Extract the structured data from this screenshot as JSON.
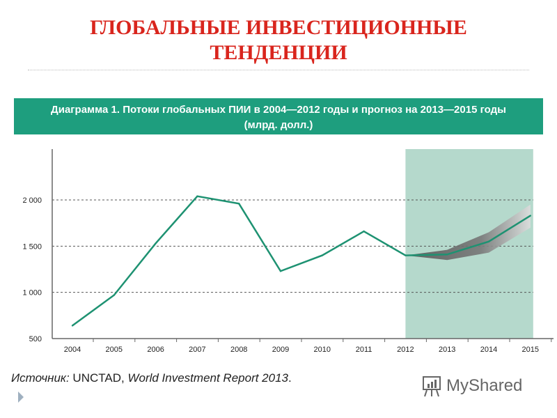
{
  "slide": {
    "title_line1": "ГЛОБАЛЬНЫЕ ИНВЕСТИЦИОННЫЕ",
    "title_line2": "ТЕНДЕНЦИИ",
    "source_label": "Источник:",
    "source_org": " UNCTAD, ",
    "source_report": "World Investment Report 2013",
    "source_end": ".",
    "logo_text": "MyShared"
  },
  "chart_data": {
    "type": "line",
    "title_line1": "Диаграмма 1. Потоки глобальных ПИИ в 2004—2012 годы и прогноз на 2013—2015 годы",
    "title_line2": "(млрд. долл.)",
    "categories": [
      "2004",
      "2005",
      "2006",
      "2007",
      "2008",
      "2009",
      "2010",
      "2011",
      "2012",
      "2013",
      "2014",
      "2015"
    ],
    "series": [
      {
        "values": [
          640,
          970,
          1530,
          2040,
          1960,
          1230,
          1400,
          1660,
          1400,
          1410,
          1550,
          1830
        ],
        "color": "#1e9272"
      }
    ],
    "forecast_band": {
      "categories": [
        "2012",
        "2013",
        "2014",
        "2015"
      ],
      "upper": [
        1400,
        1460,
        1650,
        1950
      ],
      "lower": [
        1400,
        1350,
        1430,
        1700
      ]
    },
    "forecast_region": [
      "2012",
      "2015"
    ],
    "forecast_region_color": "#b5d9cc",
    "y_ticks": [
      500,
      1000,
      1500,
      2000
    ],
    "y_tick_labels": [
      "500",
      "1 000",
      "1 500",
      "2 000"
    ],
    "ylim": [
      500,
      2550
    ],
    "grid": "dashed horizontal",
    "banner_color": "#1e9e7e",
    "title_color": "#d9251d"
  }
}
